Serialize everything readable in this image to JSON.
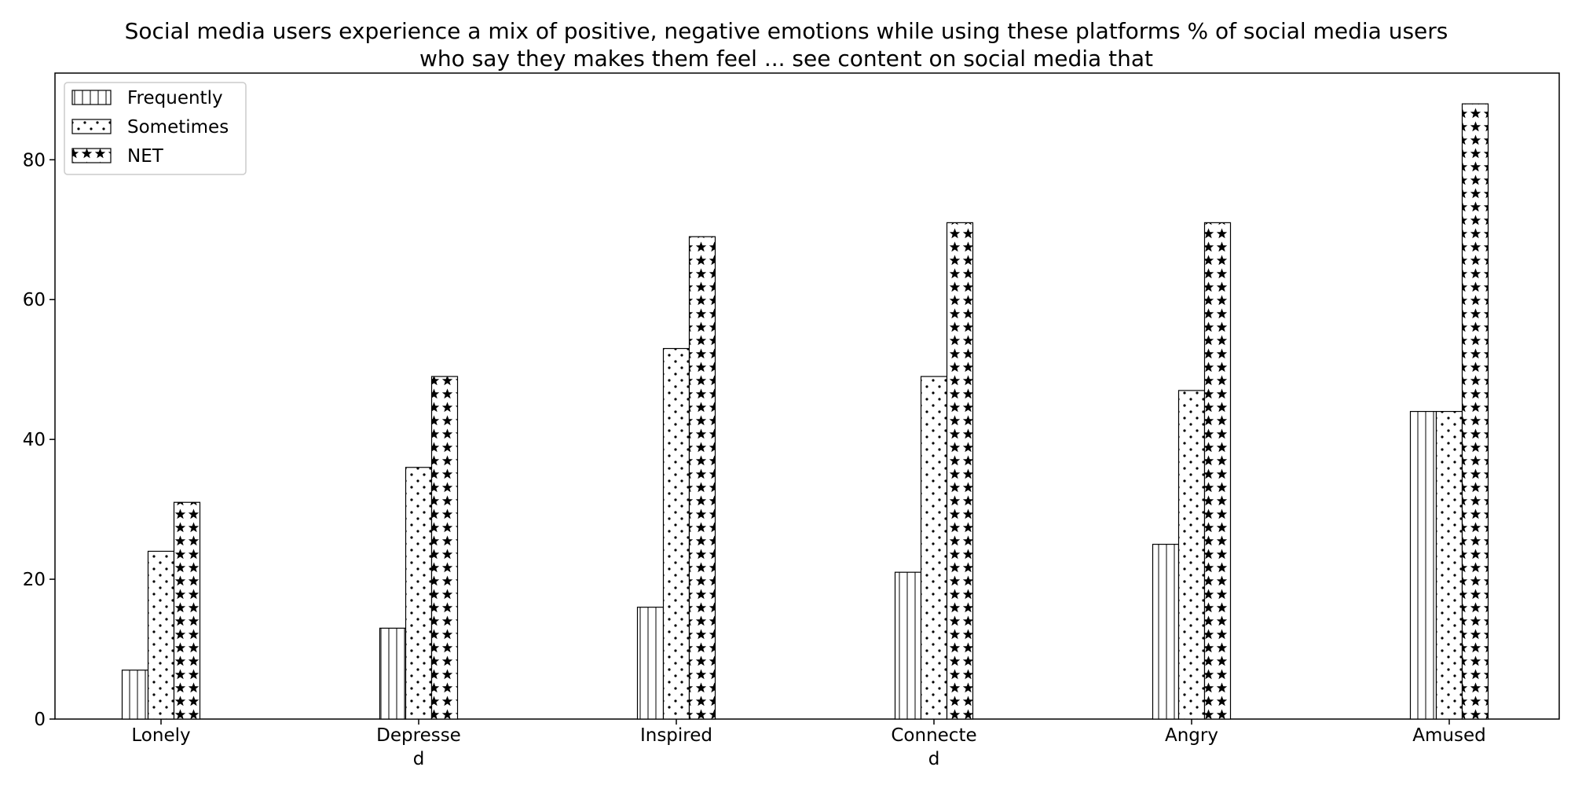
{
  "chart_data": {
    "type": "bar",
    "title_lines": [
      "Social media users experience a mix of positive, negative emotions while using these platforms % of social media users",
      "who say they makes them feel ... see content on social media that"
    ],
    "categories": [
      [
        "Lonely"
      ],
      [
        "Depresse",
        "d"
      ],
      [
        "Inspired"
      ],
      [
        "Connecte",
        "d"
      ],
      [
        "Angry"
      ],
      [
        "Amused"
      ]
    ],
    "series": [
      {
        "name": "Frequently",
        "values": [
          7,
          13,
          16,
          21,
          25,
          44
        ],
        "pattern": "vertical-lines"
      },
      {
        "name": "Sometimes",
        "values": [
          24,
          36,
          53,
          49,
          47,
          44
        ],
        "pattern": "dots"
      },
      {
        "name": "NET",
        "values": [
          31,
          49,
          69,
          71,
          71,
          88
        ],
        "pattern": "stars"
      }
    ],
    "yticks": [
      0,
      20,
      40,
      60,
      80
    ],
    "ylim": [
      0,
      92.4
    ],
    "xlabel": "",
    "ylabel": "",
    "grid": false,
    "legend_position": "top-left",
    "colors": {
      "bar_fill": "#ffffff",
      "bar_edge": "#000000",
      "hatch": "#000000"
    }
  }
}
